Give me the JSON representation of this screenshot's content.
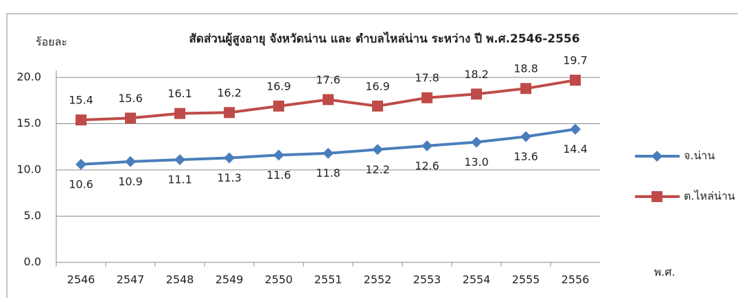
{
  "chart_data": {
    "type": "line",
    "title": "สัดส่วนผู้สูงอายุ จังหวัดน่าน และ ตำบลไหล่น่าน ระหว่าง ปี พ.ศ.2546-2556",
    "y_label": "ร้อยละ",
    "x_label": "พ.ศ.",
    "categories": [
      "2546",
      "2547",
      "2548",
      "2549",
      "2550",
      "2551",
      "2552",
      "2553",
      "2554",
      "2555",
      "2556"
    ],
    "series": [
      {
        "name": "จ.น่าน",
        "color": "#4a7ebb",
        "marker": "diamond",
        "values": [
          10.6,
          10.9,
          11.1,
          11.3,
          11.6,
          11.8,
          12.2,
          12.6,
          13.0,
          13.6,
          14.4
        ],
        "value_labels": [
          "10.6",
          "10.9",
          "11.1",
          "11.3",
          "11.6",
          "11.8",
          "12.2",
          "12.6",
          "13.0",
          "13.6",
          "14.4"
        ]
      },
      {
        "name": "ต.ไหล่น่าน",
        "color": "#be4b48",
        "marker": "square",
        "values": [
          15.4,
          15.6,
          16.1,
          16.2,
          16.9,
          17.6,
          16.9,
          17.8,
          18.2,
          18.8,
          19.7
        ],
        "value_labels": [
          "15.4",
          "15.6",
          "16.1",
          "16.2",
          "16.9",
          "17.6",
          "16.9",
          "17.8",
          "18.2",
          "18.8",
          "19.7"
        ]
      }
    ],
    "ylim": [
      0,
      20
    ],
    "yticks": [
      {
        "value": 0,
        "label": "0.0"
      },
      {
        "value": 5,
        "label": "5.0"
      },
      {
        "value": 10,
        "label": "10.0"
      },
      {
        "value": 15,
        "label": "15.0"
      },
      {
        "value": 20,
        "label": "20.0"
      }
    ],
    "grid": true,
    "legend": "right"
  }
}
